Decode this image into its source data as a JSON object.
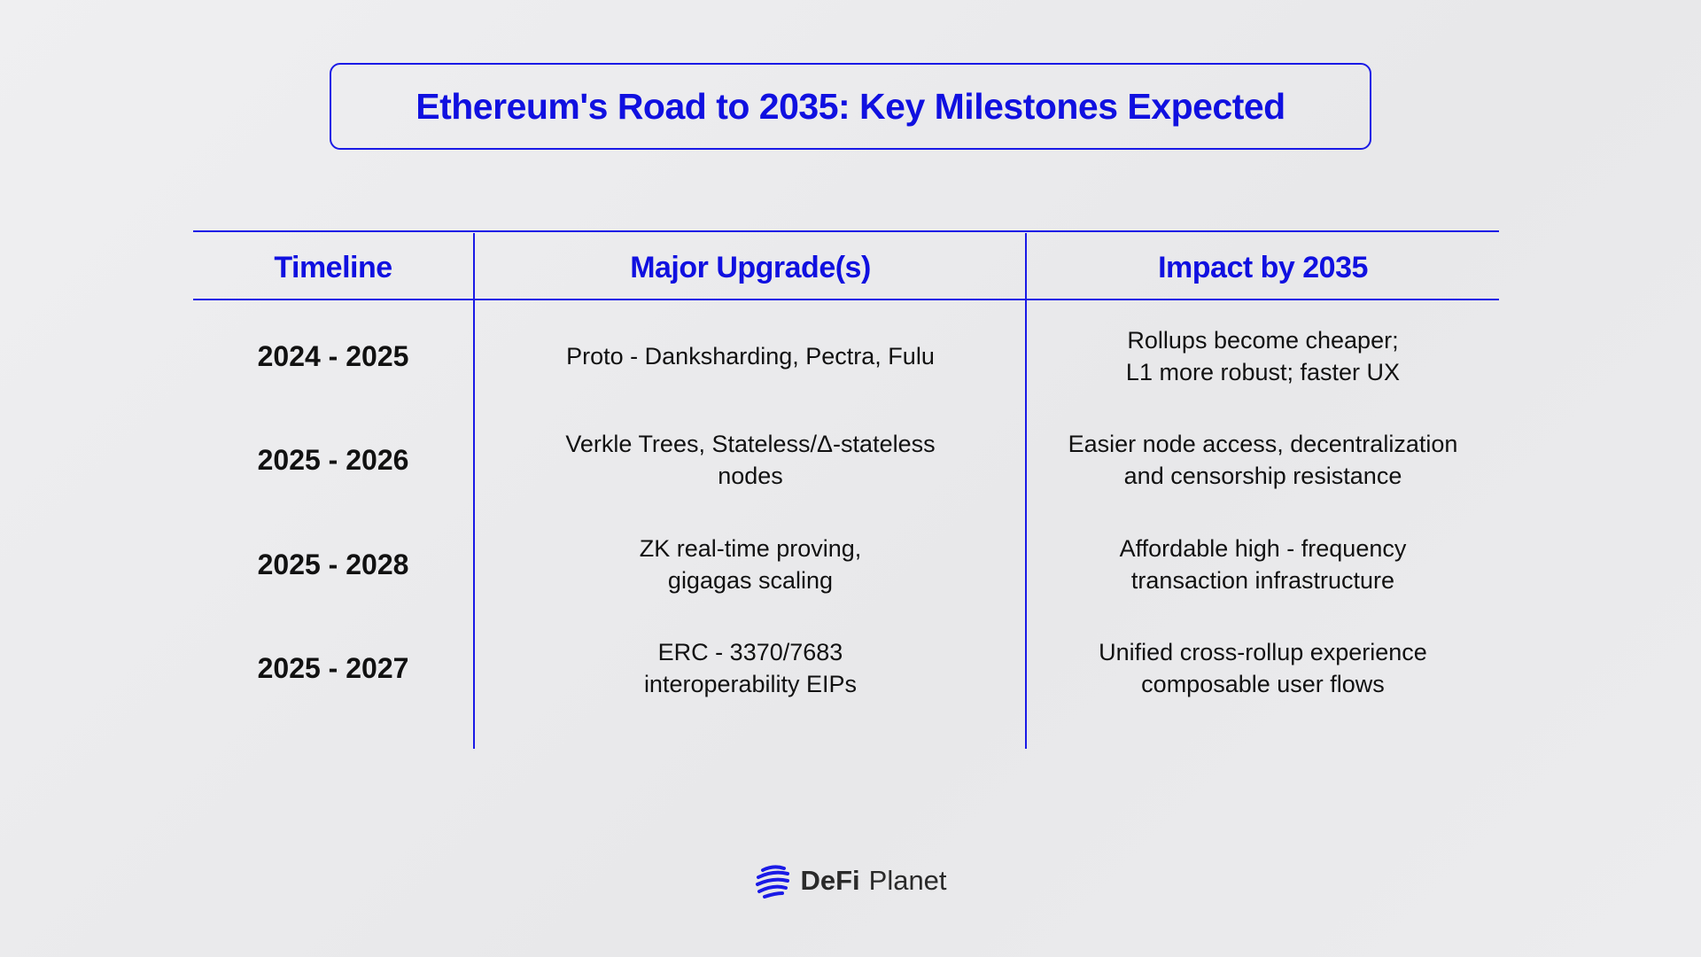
{
  "header": {
    "title": "Ethereum's Road to 2035: Key Milestones Expected"
  },
  "table": {
    "columns": [
      "Timeline",
      "Major Upgrade(s)",
      "Impact by 2035"
    ],
    "rows": [
      [
        [
          "2024 - 2025"
        ],
        [
          "Proto - Danksharding, Pectra, Fulu"
        ],
        [
          "Rollups become cheaper;",
          "L1 more robust; faster UX"
        ]
      ],
      [
        [
          "2025 - 2026"
        ],
        [
          "Verkle Trees, Stateless/Δ-stateless",
          "nodes"
        ],
        [
          "Easier node access, decentralization",
          "and censorship resistance"
        ]
      ],
      [
        [
          "2025 - 2028"
        ],
        [
          "ZK real-time proving,",
          "gigagas scaling"
        ],
        [
          "Affordable high - frequency",
          "transaction infrastructure"
        ]
      ],
      [
        [
          "2025 - 2027"
        ],
        [
          "ERC - 3370/7683",
          "interoperability EIPs"
        ],
        [
          "Unified cross-rollup experience",
          "composable user flows"
        ]
      ]
    ]
  },
  "footer": {
    "brand": [
      "DeFi",
      "Planet"
    ]
  }
}
